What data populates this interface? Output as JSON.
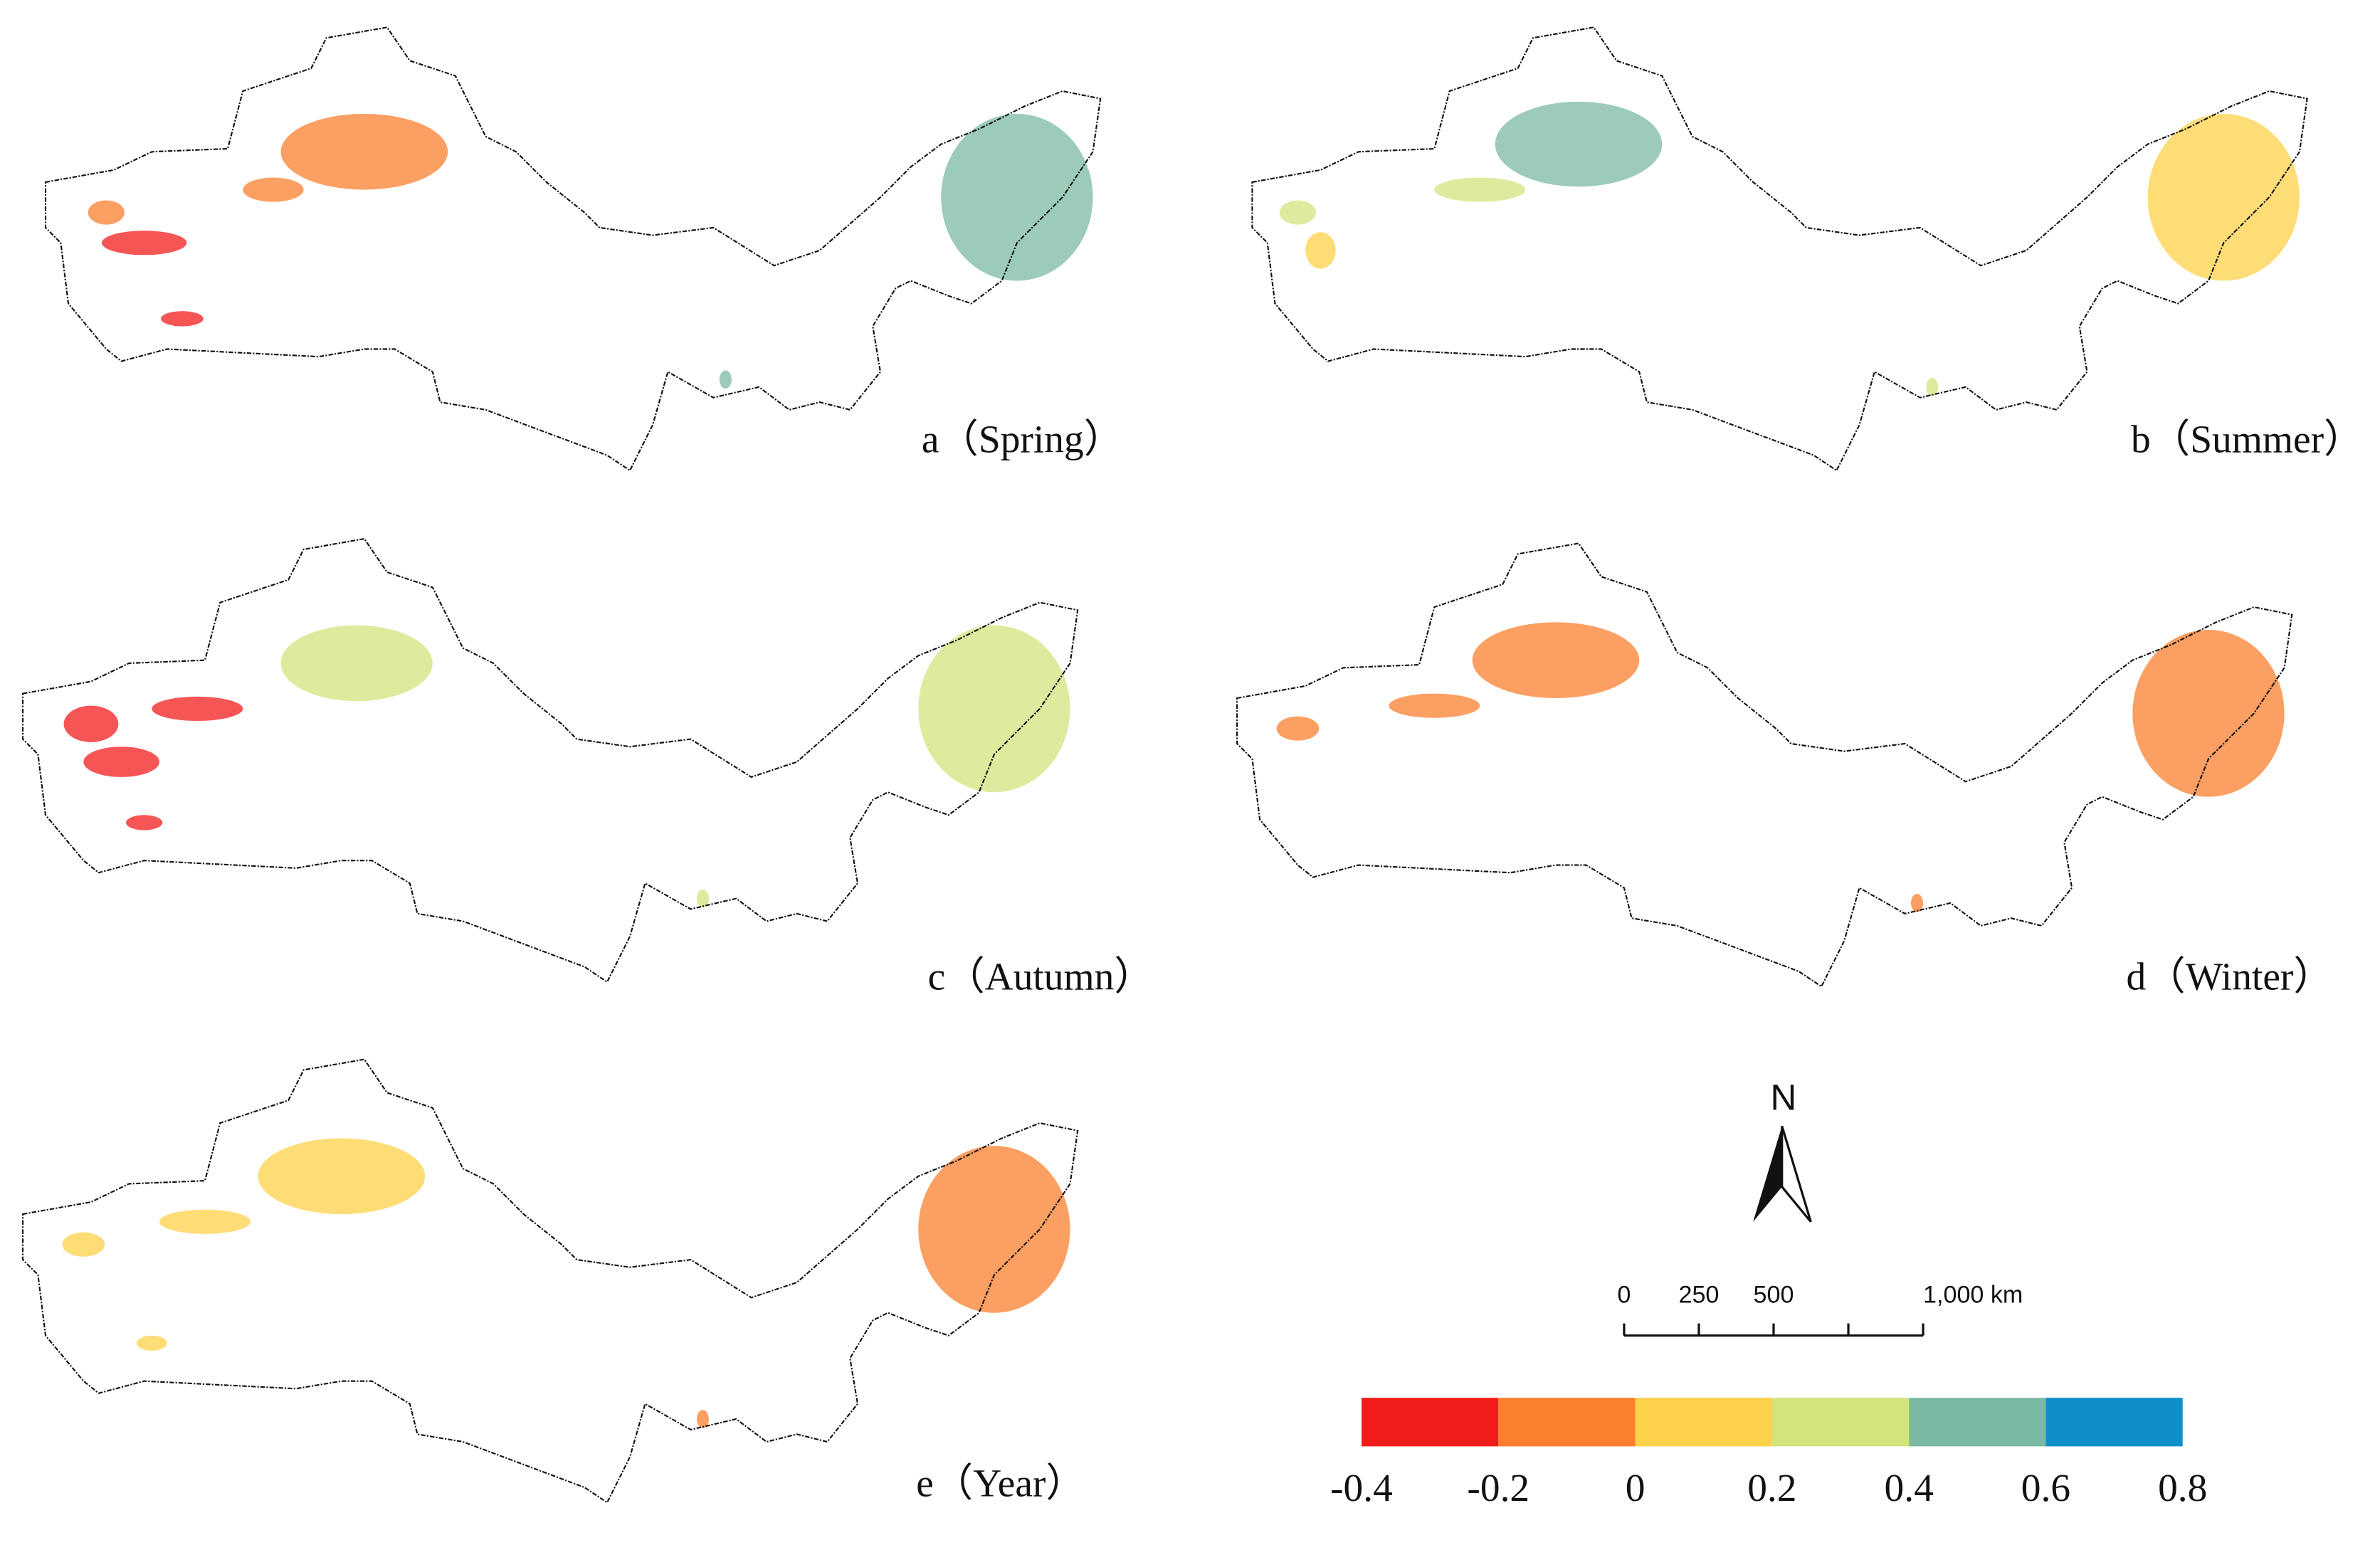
{
  "panels": [
    {
      "label": "a（Spring）"
    },
    {
      "label": "b（Summer）"
    },
    {
      "label": "c（Autumn）"
    },
    {
      "label": "d（Winter）"
    },
    {
      "label": "e（Year）"
    }
  ],
  "north": "N",
  "scale_bar": {
    "range": [
      0,
      1000
    ],
    "ticks": [
      0,
      250,
      500,
      {
        "value": 750,
        "label": null
      },
      {
        "value": 1000,
        "label": "1,000 km"
      }
    ]
  },
  "legend": {
    "colors": [
      "#f31c1c",
      "#fb7f2d",
      "#fdd24a",
      "#d3e47d",
      "#7bbaa2",
      "#0f8fca"
    ],
    "ticks": [
      -0.4,
      -0.2,
      0,
      0.2,
      0.4,
      0.6,
      0.8
    ]
  }
}
